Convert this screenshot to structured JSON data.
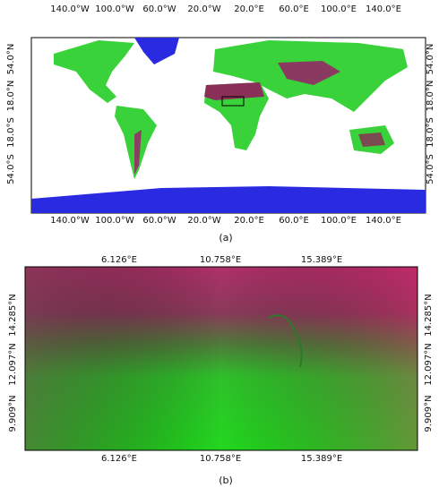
{
  "panels": [
    {
      "caption": "(a)",
      "lon_ticks": [
        "140.0°W",
        "100.0°W",
        "60.0°W",
        "20.0°W",
        "20.0°E",
        "60.0°E",
        "100.0°E",
        "140.0°E"
      ],
      "lat_ticks": [
        "54.0°N",
        "18.0°N",
        "18.0°S",
        "54.0°S"
      ]
    },
    {
      "caption": "(b)",
      "lon_ticks": [
        "6.126°E",
        "10.758°E",
        "15.389°E"
      ],
      "lat_ticks": [
        "14.285°N",
        "12.097°N",
        "9.909°N"
      ]
    }
  ]
}
